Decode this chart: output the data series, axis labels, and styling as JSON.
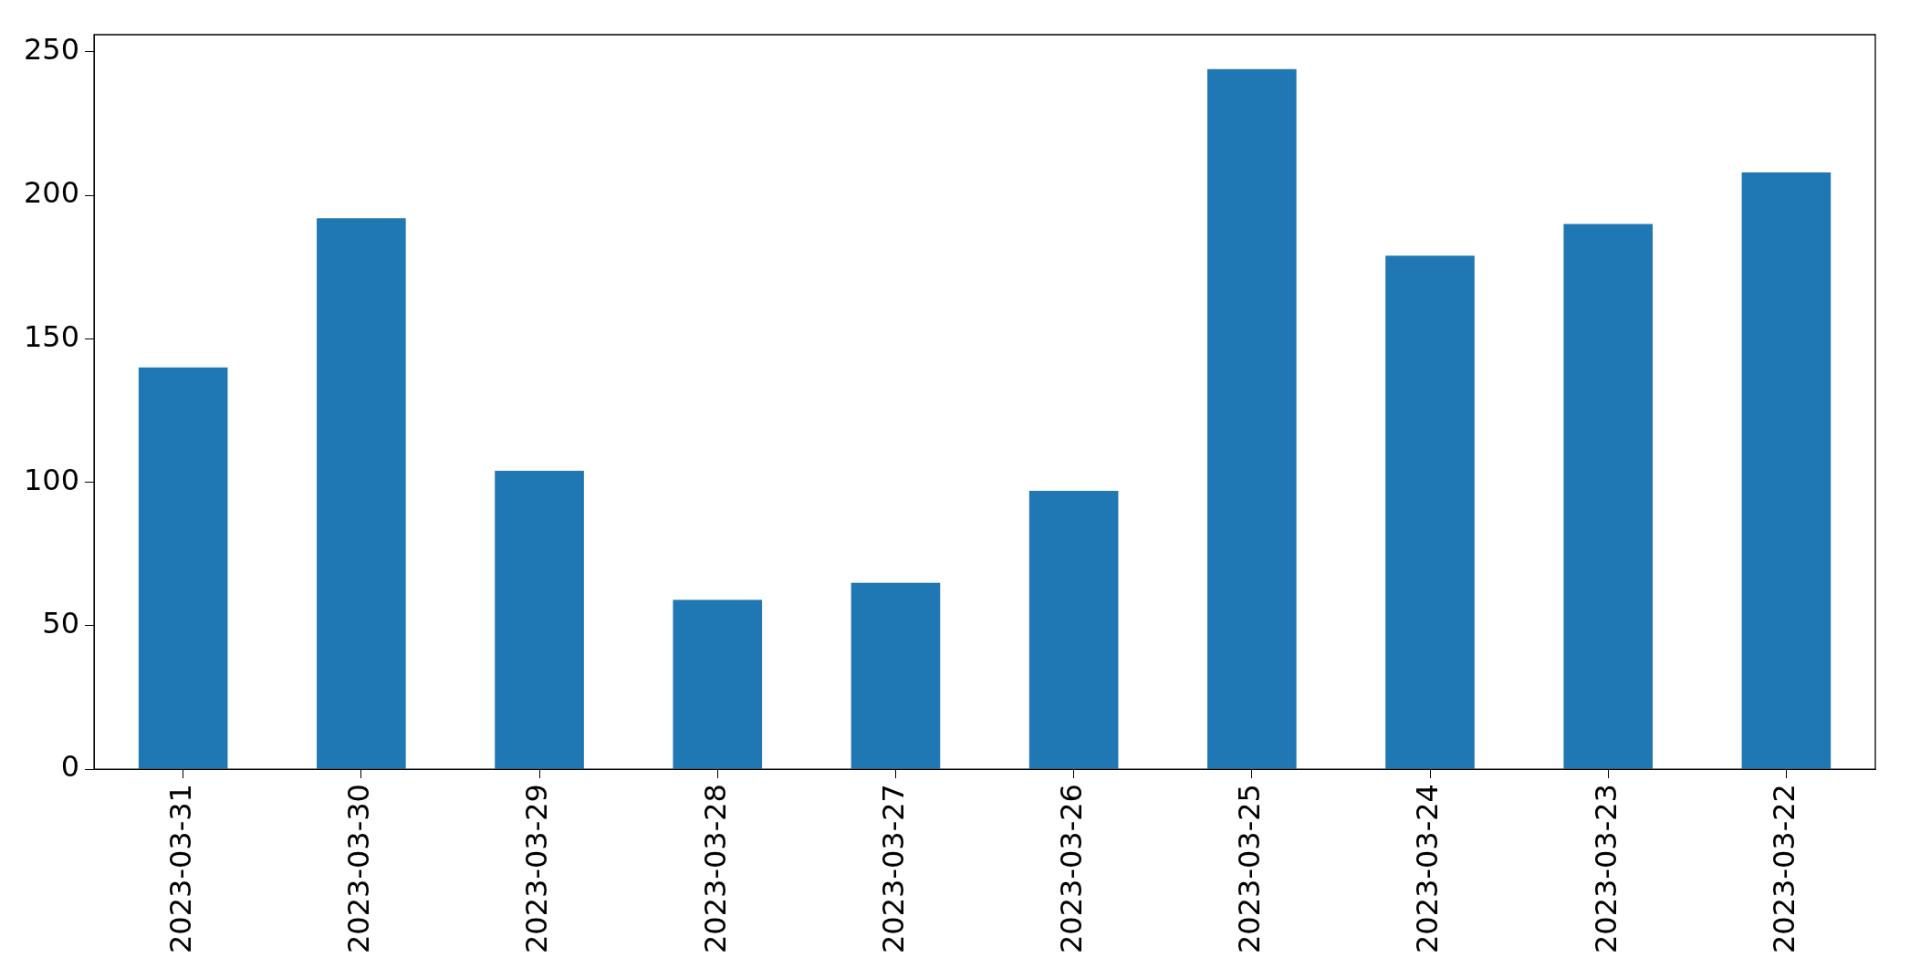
{
  "chart_data": {
    "type": "bar",
    "categories": [
      "2023-03-31",
      "2023-03-30",
      "2023-03-29",
      "2023-03-28",
      "2023-03-27",
      "2023-03-26",
      "2023-03-25",
      "2023-03-24",
      "2023-03-23",
      "2023-03-22"
    ],
    "values": [
      140,
      192,
      104,
      59,
      65,
      97,
      244,
      179,
      190,
      208
    ],
    "color": "#1f77b4",
    "ylim": [
      0,
      256
    ],
    "yticks": [
      0,
      50,
      100,
      150,
      200,
      250
    ],
    "grid": false,
    "legend": false
  }
}
